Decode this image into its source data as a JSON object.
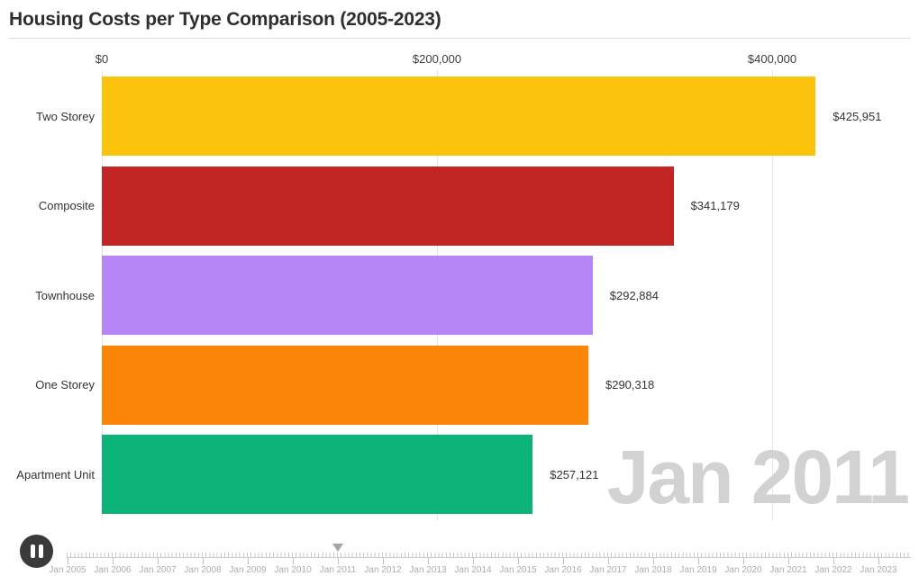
{
  "header": {
    "title": "Housing Costs per Type Comparison (2005-2023)"
  },
  "chart_data": {
    "type": "bar",
    "orientation": "horizontal",
    "title": "Housing Costs per Type Comparison (2005-2023)",
    "current_frame": "Jan 2011",
    "categories": [
      "Two Storey",
      "Composite",
      "Townhouse",
      "One Storey",
      "Apartment Unit"
    ],
    "values": [
      425951,
      341179,
      292884,
      290318,
      257121
    ],
    "value_labels": [
      "$425,951",
      "$341,179",
      "$292,884",
      "$290,318",
      "$257,121"
    ],
    "bar_colors": [
      "#fcc30c",
      "#c22524",
      "#b786f6",
      "#fa8507",
      "#0cb478"
    ],
    "axis": {
      "ticks": [
        0,
        200000,
        400000
      ],
      "tick_labels": [
        "$0",
        "$200,000",
        "$400,000"
      ],
      "xlim": [
        0,
        480000
      ],
      "grid": true
    },
    "legend": "none"
  },
  "watermark": {
    "text": "Jan 2011",
    "color": "#d2d2d2"
  },
  "timeline": {
    "years": [
      "Jan 2005",
      "Jan 2006",
      "Jan 2007",
      "Jan 2008",
      "Jan 2009",
      "Jan 2010",
      "Jan 2011",
      "Jan 2012",
      "Jan 2013",
      "Jan 2014",
      "Jan 2015",
      "Jan 2016",
      "Jan 2017",
      "Jan 2018",
      "Jan 2019",
      "Jan 2020",
      "Jan 2021",
      "Jan 2022",
      "Jan 2023"
    ],
    "current": "Jan 2011",
    "current_index": 6,
    "player_state": "playing"
  }
}
